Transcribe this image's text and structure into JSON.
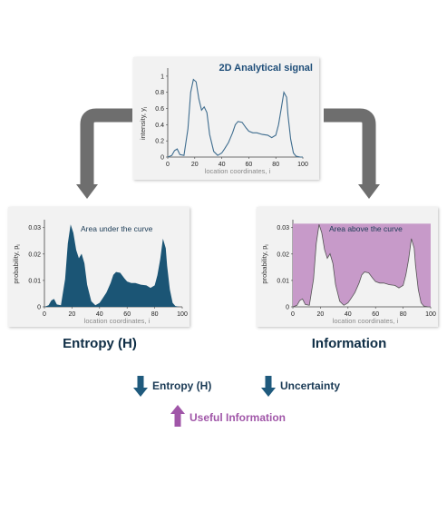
{
  "panel_top": {
    "title": "2D Analytical signal",
    "ylabel": "intensity, y",
    "ylabel_sub": "i",
    "xlabel": "location coordinates, i",
    "yticks": [
      "0",
      "0.2",
      "0.4",
      "0.6",
      "0.8",
      "1"
    ],
    "xticks": [
      "0",
      "20",
      "40",
      "60",
      "80",
      "100"
    ]
  },
  "panel_left": {
    "caption": "Area under the curve",
    "ylabel": "probability, p",
    "ylabel_sub": "i",
    "xlabel": "location coordinates, i",
    "yticks": [
      "0",
      "0.01",
      "0.02",
      "0.03"
    ],
    "xticks": [
      "0",
      "20",
      "40",
      "60",
      "80",
      "100"
    ]
  },
  "panel_right": {
    "caption": "Area above the curve",
    "ylabel": "probability, p",
    "ylabel_sub": "i",
    "xlabel": "location coordinates, i",
    "yticks": [
      "0",
      "0.01",
      "0.02",
      "0.03"
    ],
    "xticks": [
      "0",
      "20",
      "40",
      "60",
      "80",
      "100"
    ]
  },
  "labels": {
    "entropy": "Entropy (H)",
    "information": "Information"
  },
  "legend": {
    "entropy_down": "Entropy (H)",
    "uncertainty_down": "Uncertainty",
    "useful_up": "Useful Information"
  },
  "colors": {
    "line": "#3f6d8f",
    "fill_dark": "#1b5575",
    "fill_purple": "#c79ac9",
    "arrow_gray": "#6e6e6e",
    "arrow_blue": "#1f5a7d",
    "arrow_purple": "#a056a8",
    "title_blue": "#1f4e79"
  },
  "chart_data": [
    {
      "type": "line",
      "name": "panel_top",
      "x": [
        0,
        3,
        5,
        7,
        9,
        12,
        15,
        17,
        19,
        21,
        23,
        25,
        27,
        29,
        31,
        34,
        37,
        40,
        42,
        45,
        48,
        50,
        52,
        55,
        58,
        60,
        63,
        66,
        70,
        74,
        77,
        80,
        82,
        84,
        86,
        88,
        89,
        91,
        93,
        95,
        98,
        100
      ],
      "y": [
        0.0,
        0.02,
        0.08,
        0.1,
        0.03,
        0.02,
        0.35,
        0.8,
        0.96,
        0.93,
        0.72,
        0.58,
        0.62,
        0.55,
        0.28,
        0.07,
        0.02,
        0.05,
        0.1,
        0.18,
        0.3,
        0.4,
        0.44,
        0.43,
        0.36,
        0.32,
        0.3,
        0.3,
        0.28,
        0.27,
        0.24,
        0.27,
        0.4,
        0.6,
        0.8,
        0.74,
        0.52,
        0.22,
        0.05,
        0.01,
        0.0,
        0.0
      ],
      "xlim": [
        0,
        100
      ],
      "ylim": [
        0,
        1.1
      ]
    },
    {
      "type": "area",
      "name": "panel_left",
      "x": [
        0,
        3,
        5,
        7,
        9,
        12,
        15,
        17,
        19,
        21,
        23,
        25,
        27,
        29,
        31,
        34,
        37,
        40,
        42,
        45,
        48,
        50,
        52,
        55,
        58,
        60,
        63,
        66,
        70,
        74,
        77,
        80,
        82,
        84,
        86,
        88,
        89,
        91,
        93,
        95,
        98,
        100
      ],
      "y": [
        0.0,
        0.0006,
        0.0024,
        0.003,
        0.0009,
        0.0006,
        0.0105,
        0.024,
        0.0312,
        0.028,
        0.0216,
        0.0184,
        0.0201,
        0.0165,
        0.0084,
        0.0021,
        0.0006,
        0.0015,
        0.003,
        0.0054,
        0.009,
        0.0121,
        0.0132,
        0.0129,
        0.0108,
        0.0096,
        0.009,
        0.009,
        0.0084,
        0.0081,
        0.0072,
        0.0081,
        0.012,
        0.018,
        0.0258,
        0.0222,
        0.0156,
        0.0066,
        0.0015,
        0.0003,
        0.0,
        0.0
      ],
      "xlim": [
        0,
        100
      ],
      "ylim": [
        0,
        0.033
      ]
    },
    {
      "type": "area",
      "name": "panel_right",
      "x": [
        0,
        3,
        5,
        7,
        9,
        12,
        15,
        17,
        19,
        21,
        23,
        25,
        27,
        29,
        31,
        34,
        37,
        40,
        42,
        45,
        48,
        50,
        52,
        55,
        58,
        60,
        63,
        66,
        70,
        74,
        77,
        80,
        82,
        84,
        86,
        88,
        89,
        91,
        93,
        95,
        98,
        100
      ],
      "y": [
        0.0,
        0.0006,
        0.0024,
        0.003,
        0.0009,
        0.0006,
        0.0105,
        0.024,
        0.0312,
        0.028,
        0.0216,
        0.0184,
        0.0201,
        0.0165,
        0.0084,
        0.0021,
        0.0006,
        0.0015,
        0.003,
        0.0054,
        0.009,
        0.0121,
        0.0132,
        0.0129,
        0.0108,
        0.0096,
        0.009,
        0.009,
        0.0084,
        0.0081,
        0.0072,
        0.0081,
        0.012,
        0.018,
        0.0258,
        0.0222,
        0.0156,
        0.0066,
        0.0015,
        0.0003,
        0.0,
        0.0
      ],
      "fill_ceiling": 0.0315,
      "xlim": [
        0,
        100
      ],
      "ylim": [
        0,
        0.033
      ]
    }
  ]
}
